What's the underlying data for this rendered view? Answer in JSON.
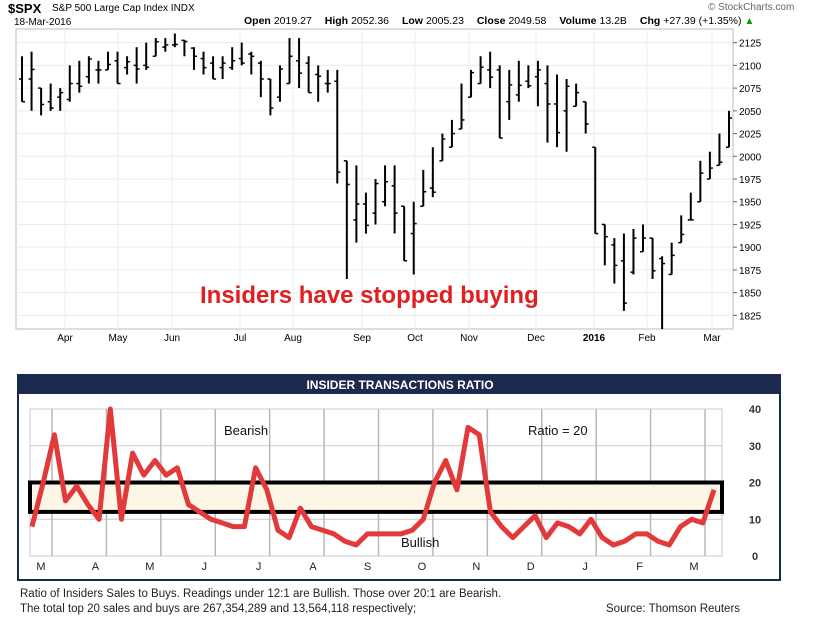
{
  "header": {
    "symbol": "$SPX",
    "description": "S&P 500 Large Cap Index",
    "exchange": "INDX",
    "date": "18-Mar-2016",
    "open_label": "Open",
    "open": "2019.27",
    "high_label": "High",
    "high": "2052.36",
    "low_label": "Low",
    "low": "2005.23",
    "close_label": "Close",
    "close": "2049.58",
    "volume_label": "Volume",
    "volume": "13.2B",
    "chg_label": "Chg",
    "chg": "+27.39 (+1.35%)",
    "brand": "© StockCharts.com"
  },
  "colors": {
    "price_bar": "#000000",
    "insider_line": "#e23a3a",
    "annotation": "#e02020",
    "band_fill": "#fbf6e6",
    "ratio_header_bg": "#1c2a4f"
  },
  "chart_data": [
    {
      "type": "line",
      "series_style": "ohlc-bars",
      "title": "",
      "annotation": "Insiders have stopped buying",
      "ylim": [
        1810,
        2140
      ],
      "y_ticks": [
        "2125",
        "2100",
        "2075",
        "2050",
        "2025",
        "2000",
        "1975",
        "1950",
        "1925",
        "1900",
        "1875",
        "1850",
        "1825"
      ],
      "x_tick_labels": [
        "Apr",
        "May",
        "Jun",
        "Jul",
        "Aug",
        "Sep",
        "Oct",
        "Nov",
        "Dec",
        "2016",
        "Feb",
        "Mar"
      ],
      "series": [
        {
          "bars": [
            [
              2110,
              2060
            ],
            [
              2115,
              2050
            ],
            [
              2075,
              2045
            ],
            [
              2080,
              2050
            ],
            [
              2075,
              2050
            ],
            [
              2100,
              2060
            ],
            [
              2105,
              2070
            ],
            [
              2110,
              2080
            ],
            [
              2105,
              2080
            ],
            [
              2115,
              2095
            ],
            [
              2115,
              2080
            ],
            [
              2110,
              2090
            ],
            [
              2120,
              2080
            ],
            [
              2125,
              2095
            ],
            [
              2130,
              2110
            ],
            [
              2130,
              2115
            ],
            [
              2135,
              2120
            ],
            [
              2128,
              2110
            ],
            [
              2120,
              2095
            ],
            [
              2115,
              2090
            ],
            [
              2110,
              2085
            ],
            [
              2110,
              2085
            ],
            [
              2120,
              2095
            ],
            [
              2125,
              2100
            ],
            [
              2115,
              2090
            ],
            [
              2105,
              2065
            ],
            [
              2085,
              2045
            ],
            [
              2100,
              2060
            ],
            [
              2130,
              2080
            ],
            [
              2130,
              2075
            ],
            [
              2110,
              2070
            ],
            [
              2100,
              2060
            ],
            [
              2095,
              2070
            ],
            [
              2095,
              1970
            ],
            [
              1995,
              1865
            ],
            [
              1990,
              1905
            ],
            [
              1960,
              1915
            ],
            [
              1975,
              1925
            ],
            [
              1990,
              1945
            ],
            [
              1990,
              1915
            ],
            [
              1945,
              1885
            ],
            [
              1950,
              1870
            ],
            [
              1985,
              1945
            ],
            [
              2010,
              1955
            ],
            [
              2025,
              1995
            ],
            [
              2040,
              2010
            ],
            [
              2080,
              2030
            ],
            [
              2095,
              2065
            ],
            [
              2110,
              2080
            ],
            [
              2115,
              2075
            ],
            [
              2100,
              2020
            ],
            [
              2095,
              2040
            ],
            [
              2105,
              2060
            ],
            [
              2100,
              2075
            ],
            [
              2105,
              2055
            ],
            [
              2100,
              2015
            ],
            [
              2090,
              2010
            ],
            [
              2085,
              2005
            ],
            [
              2080,
              2055
            ],
            [
              2060,
              2025
            ],
            [
              2010,
              1915
            ],
            [
              1925,
              1880
            ],
            [
              1910,
              1860
            ],
            [
              1915,
              1830
            ],
            [
              1920,
              1870
            ],
            [
              1925,
              1895
            ],
            [
              1910,
              1865
            ],
            [
              1890,
              1810
            ],
            [
              1905,
              1870
            ],
            [
              1935,
              1905
            ],
            [
              1960,
              1930
            ],
            [
              1995,
              1950
            ],
            [
              2005,
              1975
            ],
            [
              2025,
              1990
            ],
            [
              2050,
              2010
            ]
          ]
        }
      ]
    },
    {
      "type": "line",
      "title": "INSIDER TRANSACTIONS RATIO",
      "annotation_ratio": "Ratio = 20",
      "label_bearish": "Bearish",
      "label_bullish": "Bullish",
      "ylim": [
        0,
        40
      ],
      "y_ticks": [
        "40",
        "30",
        "20",
        "10",
        "0"
      ],
      "band": [
        12,
        20
      ],
      "x_tick_labels": [
        "M",
        "A",
        "M",
        "J",
        "J",
        "A",
        "S",
        "O",
        "N",
        "D",
        "J",
        "F",
        "M"
      ],
      "series": [
        {
          "name": "",
          "values": [
            8,
            20,
            33,
            15,
            19,
            14,
            10,
            40,
            10,
            28,
            22,
            26,
            22,
            24,
            14,
            12,
            10,
            9,
            8,
            8,
            24,
            18,
            7,
            5,
            13,
            8,
            7,
            6,
            4,
            3,
            6,
            6,
            6,
            6,
            7,
            10,
            20,
            26,
            18,
            35,
            33,
            12,
            8,
            5,
            8,
            11,
            5,
            9,
            8,
            6,
            10,
            5,
            3,
            4,
            6,
            6,
            4,
            3,
            8,
            10,
            9,
            18
          ]
        }
      ]
    }
  ],
  "footer": {
    "line1": "Ratio of Insiders Sales to Buys. Readings under 12:1 are Bullish. Those over 20:1 are Bearish.",
    "line2": "The total top 20 sales and buys are 267,354,289 and 13,564,118 respectively;",
    "source": "Source: Thomson Reuters"
  }
}
